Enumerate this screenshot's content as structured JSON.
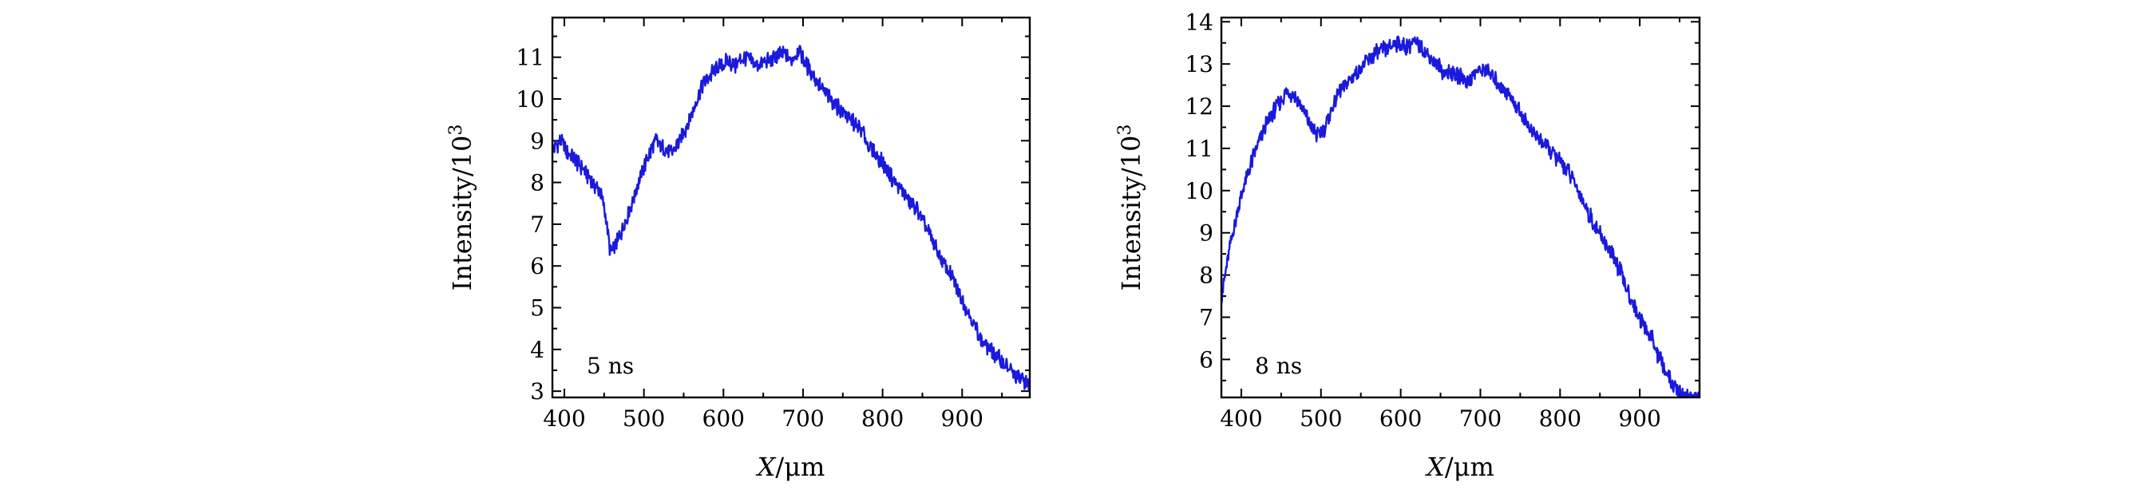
{
  "chart_data": [
    {
      "type": "line",
      "annotation": "5 ns",
      "xlabel_var": "X",
      "xlabel_unit": "/μm",
      "ylabel_base": "Intensity/10",
      "ylabel_exp": "3",
      "xlim": [
        385,
        985
      ],
      "ylim": [
        2.85,
        11.95
      ],
      "xticks": [
        400,
        500,
        600,
        700,
        800,
        900
      ],
      "xtick_labels": [
        "400",
        "500",
        "600",
        "700",
        "800",
        "900"
      ],
      "yticks": [
        3,
        4,
        5,
        6,
        7,
        8,
        9,
        10,
        11
      ],
      "ytick_labels": [
        "3",
        "4",
        "5",
        "6",
        "7",
        "8",
        "9",
        "10",
        "11"
      ],
      "line_color": "#1a1adc",
      "series": [
        {
          "x": [
            385,
            395,
            405,
            415,
            425,
            435,
            445,
            452,
            458,
            465,
            475,
            485,
            495,
            505,
            515,
            525,
            535,
            545,
            555,
            565,
            575,
            585,
            595,
            605,
            615,
            625,
            635,
            645,
            655,
            665,
            675,
            685,
            695,
            705,
            715,
            725,
            735,
            745,
            755,
            765,
            775,
            785,
            795,
            805,
            815,
            825,
            835,
            845,
            855,
            865,
            875,
            885,
            895,
            905,
            915,
            925,
            935,
            945,
            955,
            965,
            975,
            985
          ],
          "y": [
            8.8,
            9.0,
            8.7,
            8.5,
            8.3,
            8.0,
            7.8,
            7.2,
            6.3,
            6.5,
            7.0,
            7.5,
            8.1,
            8.6,
            9.0,
            8.8,
            8.7,
            9.0,
            9.4,
            9.9,
            10.4,
            10.6,
            10.8,
            10.9,
            10.8,
            11.0,
            10.9,
            10.8,
            10.9,
            11.0,
            11.1,
            10.9,
            11.2,
            10.8,
            10.5,
            10.2,
            10.0,
            9.8,
            9.6,
            9.4,
            9.2,
            8.8,
            8.6,
            8.3,
            8.0,
            7.8,
            7.5,
            7.3,
            6.9,
            6.5,
            6.1,
            5.8,
            5.4,
            5.0,
            4.6,
            4.2,
            4.0,
            3.8,
            3.6,
            3.4,
            3.3,
            3.1
          ]
        }
      ]
    },
    {
      "type": "line",
      "annotation": "8 ns",
      "xlabel_var": "X",
      "xlabel_unit": "/μm",
      "ylabel_base": "Intensity/10",
      "ylabel_exp": "3",
      "xlim": [
        375,
        975
      ],
      "ylim": [
        5.1,
        14.1
      ],
      "xticks": [
        400,
        500,
        600,
        700,
        800,
        900
      ],
      "xtick_labels": [
        "400",
        "500",
        "600",
        "700",
        "800",
        "900"
      ],
      "yticks": [
        6,
        7,
        8,
        9,
        10,
        11,
        12,
        13,
        14
      ],
      "ytick_labels": [
        "6",
        "7",
        "8",
        "9",
        "10",
        "11",
        "12",
        "13",
        "14"
      ],
      "line_color": "#1a1adc",
      "series": [
        {
          "x": [
            375,
            380,
            385,
            395,
            405,
            415,
            425,
            435,
            445,
            455,
            465,
            475,
            485,
            495,
            505,
            515,
            525,
            535,
            545,
            555,
            565,
            575,
            585,
            595,
            605,
            615,
            625,
            635,
            645,
            655,
            665,
            675,
            685,
            695,
            705,
            715,
            725,
            735,
            745,
            755,
            765,
            775,
            785,
            795,
            805,
            815,
            825,
            835,
            845,
            855,
            865,
            875,
            885,
            895,
            905,
            915,
            925,
            935,
            945,
            955,
            965,
            975
          ],
          "y": [
            7.5,
            8.0,
            8.6,
            9.5,
            10.2,
            10.8,
            11.3,
            11.7,
            12.0,
            12.3,
            12.3,
            12.0,
            11.6,
            11.3,
            11.5,
            12.0,
            12.4,
            12.6,
            12.8,
            13.0,
            13.2,
            13.3,
            13.4,
            13.5,
            13.4,
            13.5,
            13.4,
            13.2,
            13.0,
            12.8,
            12.8,
            12.7,
            12.6,
            12.8,
            12.9,
            12.7,
            12.5,
            12.3,
            12.0,
            11.7,
            11.4,
            11.2,
            11.0,
            10.8,
            10.6,
            10.3,
            9.9,
            9.5,
            9.1,
            8.8,
            8.5,
            8.1,
            7.6,
            7.2,
            6.8,
            6.5,
            6.0,
            5.6,
            5.3,
            5.15,
            5.1,
            5.1
          ]
        }
      ]
    }
  ]
}
